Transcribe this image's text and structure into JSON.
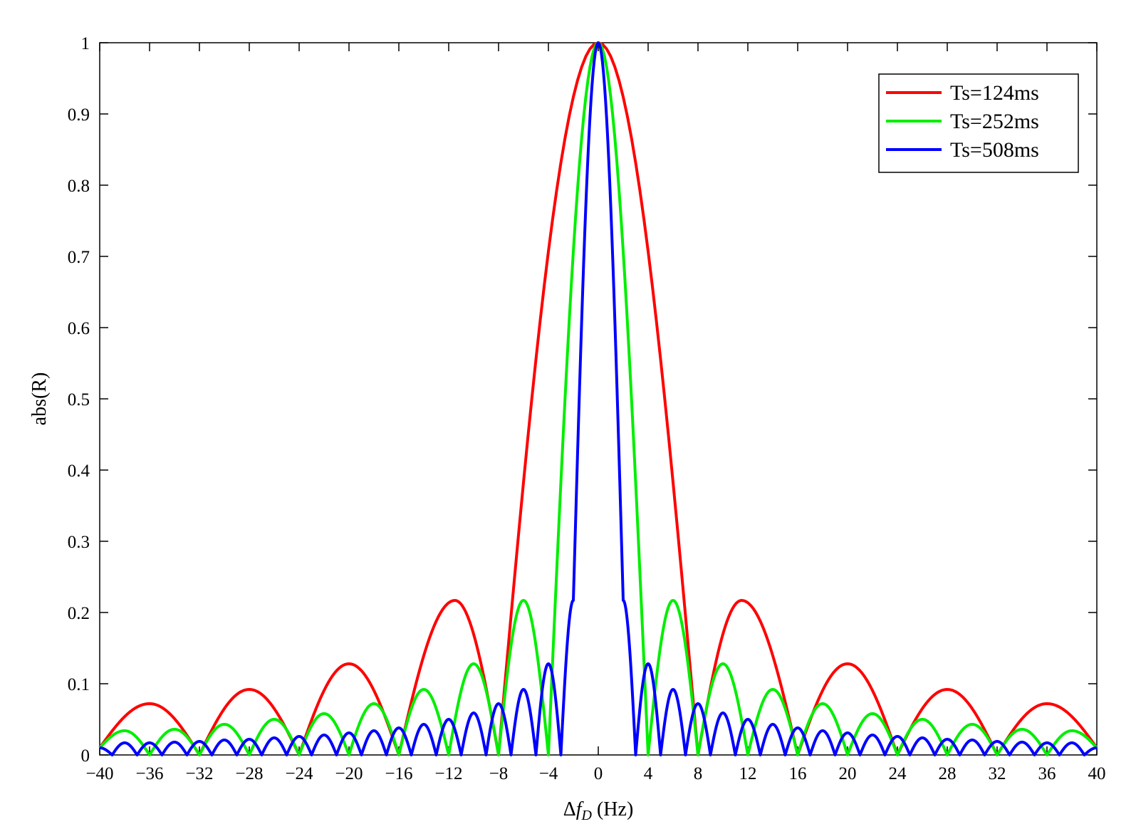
{
  "chart_data": {
    "type": "line",
    "title": "",
    "xlabel": {
      "symbol": "Δ",
      "var": "f",
      "sub": "D",
      "unit": " (Hz)"
    },
    "ylabel": "abs(R)",
    "xlim": [
      -40,
      40
    ],
    "ylim": [
      0,
      1
    ],
    "xticks": [
      -40,
      -36,
      -32,
      -28,
      -24,
      -20,
      -16,
      -12,
      -8,
      -4,
      0,
      4,
      8,
      12,
      16,
      20,
      24,
      28,
      32,
      36,
      40
    ],
    "xtick_labels": [
      "−40",
      "−36",
      "−32",
      "−28",
      "−24",
      "−20",
      "−16",
      "−12",
      "−8",
      "−4",
      "0",
      "4",
      "8",
      "12",
      "16",
      "20",
      "24",
      "28",
      "32",
      "36",
      "40"
    ],
    "yticks": [
      0,
      0.1,
      0.2,
      0.3,
      0.4,
      0.5,
      0.6,
      0.7,
      0.8,
      0.9,
      1
    ],
    "ytick_labels": [
      "0",
      "0.1",
      "0.2",
      "0.3",
      "0.4",
      "0.5",
      "0.6",
      "0.7",
      "0.8",
      "0.9",
      "1"
    ],
    "grid": false,
    "legend_position": "top-right",
    "series": [
      {
        "name": "Ts=124ms",
        "color": "#ff0000",
        "x": [
          -40,
          -36,
          -32,
          -28,
          -24,
          -20,
          -16,
          -11.5,
          -8,
          0,
          8,
          11.5,
          16,
          20,
          24,
          28,
          32,
          36,
          40
        ],
        "values": [
          0.01,
          0.072,
          0,
          0.092,
          0,
          0.128,
          0,
          0.217,
          0,
          1,
          0,
          0.217,
          0,
          0.128,
          0,
          0.092,
          0,
          0.072,
          0.01
        ]
      },
      {
        "name": "Ts=252ms",
        "color": "#00ee00",
        "x": [
          -40,
          -38,
          -36,
          -34,
          -32,
          -30,
          -28,
          -26,
          -24,
          -22,
          -20,
          -18,
          -16,
          -14,
          -12,
          -10,
          -8,
          -6,
          -4,
          0,
          4,
          6,
          8,
          10,
          12,
          14,
          16,
          18,
          20,
          22,
          24,
          26,
          28,
          30,
          32,
          34,
          36,
          38,
          40
        ],
        "values": [
          0.01,
          0.034,
          0,
          0.036,
          0,
          0.043,
          0,
          0.05,
          0,
          0.058,
          0,
          0.072,
          0,
          0.092,
          0,
          0.128,
          0,
          0.217,
          0,
          1,
          0,
          0.217,
          0,
          0.128,
          0,
          0.092,
          0,
          0.072,
          0,
          0.058,
          0,
          0.05,
          0,
          0.043,
          0,
          0.036,
          0,
          0.034,
          0.01
        ]
      },
      {
        "name": "Ts=508ms",
        "color": "#0000ff",
        "x": [
          -40,
          -39,
          -38,
          -37,
          -36,
          -35,
          -34,
          -33,
          -32,
          -31,
          -30,
          -29,
          -28,
          -27,
          -26,
          -25,
          -24,
          -23,
          -22,
          -21,
          -20,
          -19,
          -18,
          -17,
          -16,
          -15,
          -14,
          -13,
          -12,
          -11,
          -10,
          -9,
          -8,
          -7,
          -6,
          -5,
          -4,
          -3,
          -2,
          0,
          2,
          3,
          4,
          5,
          6,
          7,
          8,
          9,
          10,
          11,
          12,
          13,
          14,
          15,
          16,
          17,
          18,
          19,
          20,
          21,
          22,
          23,
          24,
          25,
          26,
          27,
          28,
          29,
          30,
          31,
          32,
          33,
          34,
          35,
          36,
          37,
          38,
          39,
          40
        ],
        "values": [
          0.01,
          0,
          0.017,
          0,
          0.017,
          0,
          0.018,
          0,
          0.019,
          0,
          0.021,
          0,
          0.022,
          0,
          0.024,
          0,
          0.026,
          0,
          0.028,
          0,
          0.031,
          0,
          0.034,
          0,
          0.038,
          0,
          0.043,
          0,
          0.05,
          0,
          0.059,
          0,
          0.072,
          0,
          0.092,
          0,
          0.128,
          0,
          0.217,
          1,
          0.217,
          0,
          0.128,
          0,
          0.092,
          0,
          0.072,
          0,
          0.059,
          0,
          0.05,
          0,
          0.043,
          0,
          0.038,
          0,
          0.034,
          0,
          0.031,
          0,
          0.028,
          0,
          0.026,
          0,
          0.024,
          0,
          0.022,
          0,
          0.021,
          0,
          0.019,
          0,
          0.018,
          0,
          0.017,
          0,
          0.017,
          0,
          0.01
        ]
      }
    ]
  }
}
